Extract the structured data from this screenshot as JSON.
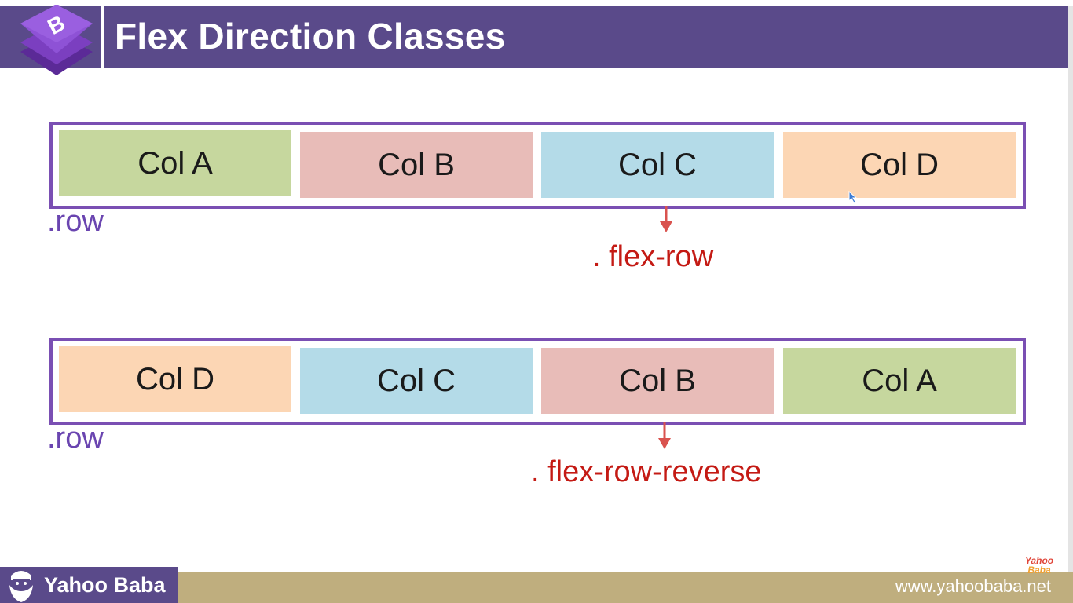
{
  "header": {
    "title": "Flex Direction Classes",
    "logo_icon": "bootstrap-logo-icon",
    "bar_color": "#5a4a8a",
    "accent_color": "#bfae7e"
  },
  "example1": {
    "columns": [
      "Col A",
      "Col B",
      "Col C",
      "Col D"
    ],
    "container_label": ".row",
    "class_label": ". flex-row"
  },
  "example2": {
    "columns": [
      "Col D",
      "Col C",
      "Col B",
      "Col A"
    ],
    "container_label": ".row",
    "class_label": ". flex-row-reverse"
  },
  "colors": {
    "col_a": "#c6d79e",
    "col_b": "#e8bcb8",
    "col_c": "#b4dbe8",
    "col_d": "#fcd6b4",
    "row_border": "#7a4fb3",
    "class_label": "#c41a14"
  },
  "footer": {
    "brand": "Yahoo Baba",
    "brand_icon": "bearded-man-icon",
    "url": "www.yahoobaba.net",
    "badge_line1": "Yahoo",
    "badge_line2": "Baba"
  }
}
